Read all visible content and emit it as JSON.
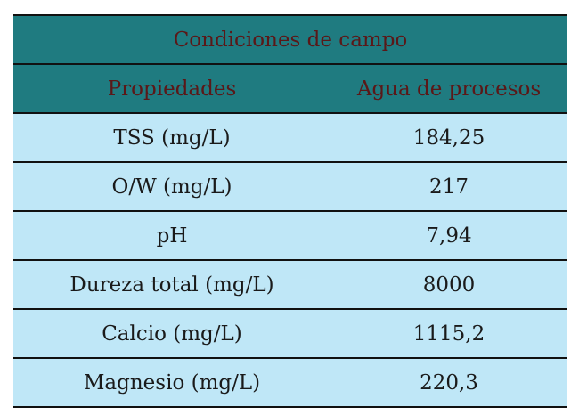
{
  "table": {
    "title": "Condiciones de campo",
    "header": [
      "Propiedades",
      "Agua de procesos"
    ],
    "rows": [
      [
        "TSS (mg/L)",
        "184,25"
      ],
      [
        "O/W (mg/L)",
        "217"
      ],
      [
        "pH",
        "7,94"
      ],
      [
        "Dureza total (mg/L)",
        "8000"
      ],
      [
        "Calcio (mg/L)",
        "1115,2"
      ],
      [
        "Magnesio (mg/L)",
        "220,3"
      ]
    ]
  }
}
